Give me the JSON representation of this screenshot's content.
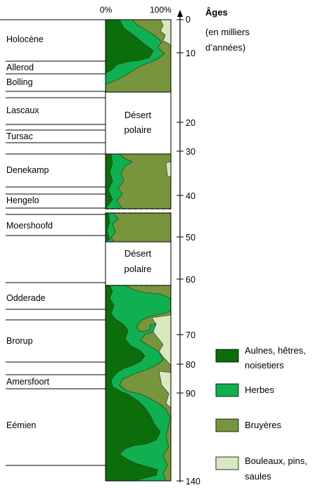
{
  "header": {
    "pct_left": "0%",
    "pct_right": "100%"
  },
  "ages": {
    "title": "Âges",
    "subtitle_1": "(en milliers",
    "subtitle_2": "d’années)",
    "ticks": [
      "0",
      "10",
      "20",
      "30",
      "40",
      "50",
      "60",
      "70",
      "80",
      "90",
      "140"
    ]
  },
  "periods": [
    "Holocène",
    "Allerod",
    "Bolling",
    "Lascaux",
    "Tursac",
    "Denekamp",
    "Hengelo",
    "Moershoofd",
    "Odderade",
    "Brorup",
    "Amersfoort",
    "Eémien"
  ],
  "deserts": [
    {
      "line1": "Désert",
      "line2": "polaire"
    },
    {
      "line1": "Désert",
      "line2": "polaire"
    }
  ],
  "legend": [
    {
      "line1": "Aulnes, hêtres,",
      "line2": "noisetiers",
      "color": "#0b6e0b"
    },
    {
      "line1": "Herbes",
      "line2": "",
      "color": "#10b050"
    },
    {
      "line1": "Bruyères",
      "line2": "",
      "color": "#77953d"
    },
    {
      "line1": "Bouleaux, pins,",
      "line2": "saules",
      "color": "#d8e8c0"
    }
  ],
  "colors": {
    "aulnes": "#0b6e0b",
    "herbes": "#10b050",
    "bruyeres": "#77953d",
    "bouleaux": "#d8e8c0"
  }
}
